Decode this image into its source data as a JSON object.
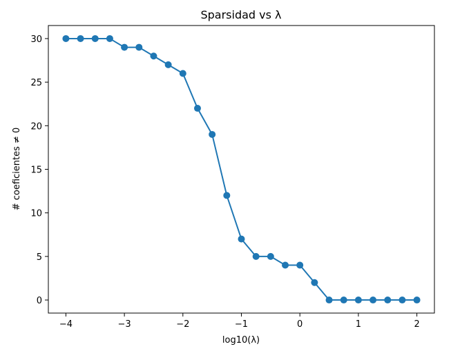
{
  "chart_data": {
    "type": "line",
    "title": "Sparsidad vs λ",
    "xlabel": "log10(λ)",
    "ylabel": "# coeficientes ≠ 0",
    "xlim": [
      -4.3,
      2.3
    ],
    "ylim": [
      -1.5,
      31.5
    ],
    "xticks": [
      -4,
      -3,
      -2,
      -1,
      0,
      1,
      2
    ],
    "xtick_labels": [
      "−4",
      "−3",
      "−2",
      "−1",
      "0",
      "1",
      "2"
    ],
    "yticks": [
      0,
      5,
      10,
      15,
      20,
      25,
      30
    ],
    "ytick_labels": [
      "0",
      "5",
      "10",
      "15",
      "20",
      "25",
      "30"
    ],
    "grid": false,
    "color": "#1f77b4",
    "marker": "circle",
    "x": [
      -4.0,
      -3.75,
      -3.5,
      -3.25,
      -3.0,
      -2.75,
      -2.5,
      -2.25,
      -2.0,
      -1.75,
      -1.5,
      -1.25,
      -1.0,
      -0.75,
      -0.5,
      -0.25,
      0.0,
      0.25,
      0.5,
      0.75,
      1.0,
      1.25,
      1.5,
      1.75,
      2.0
    ],
    "y": [
      30,
      30,
      30,
      30,
      29,
      29,
      28,
      27,
      26,
      22,
      19,
      12,
      7,
      5,
      5,
      4,
      4,
      2,
      0,
      0,
      0,
      0,
      0,
      0,
      0
    ]
  }
}
